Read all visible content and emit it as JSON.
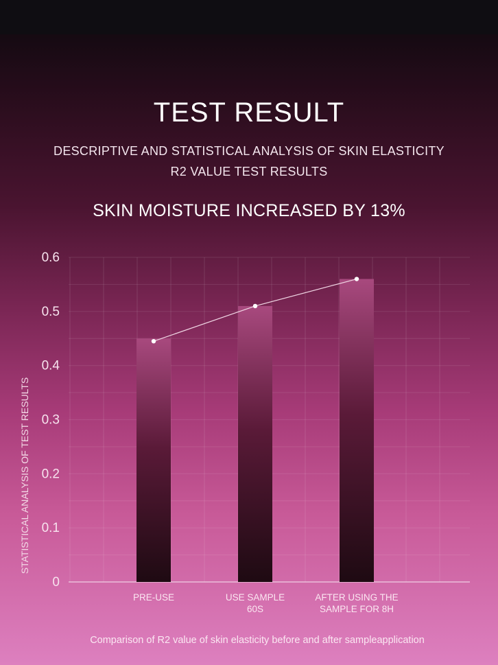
{
  "header": {
    "title": "TEST RESULT",
    "subtitle_line1": "DESCRIPTIVE AND STATISTICAL ANALYSIS OF SKIN ELASTICITY",
    "subtitle_line2": "R2 VALUE TEST RESULTS",
    "headline": "SKIN MOISTURE INCREASED BY 13%"
  },
  "caption": "Comparison of R2 value of skin elasticity before and after sampleapplication",
  "colors": {
    "bar_top": "#a8497e",
    "bar_bottom": "#1e0a12",
    "line": "#f0d6e4",
    "point": "#ffffff"
  },
  "chart_data": {
    "type": "bar",
    "title": "",
    "xlabel": "",
    "ylabel": "STATISTICAL ANALYSIS OF TEST RESULTS",
    "categories": [
      [
        "PRE-USE"
      ],
      [
        "USE SAMPLE",
        "60S"
      ],
      [
        "AFTER USING THE",
        "SAMPLE FOR 8H"
      ]
    ],
    "values": [
      0.45,
      0.51,
      0.56
    ],
    "line_overlay": [
      0.445,
      0.51,
      0.56
    ],
    "yticks": [
      "0",
      "0.1",
      "0.2",
      "0.3",
      "0.4",
      "0.5",
      "0.6"
    ],
    "ylim": [
      0,
      0.6
    ],
    "grid": true
  }
}
